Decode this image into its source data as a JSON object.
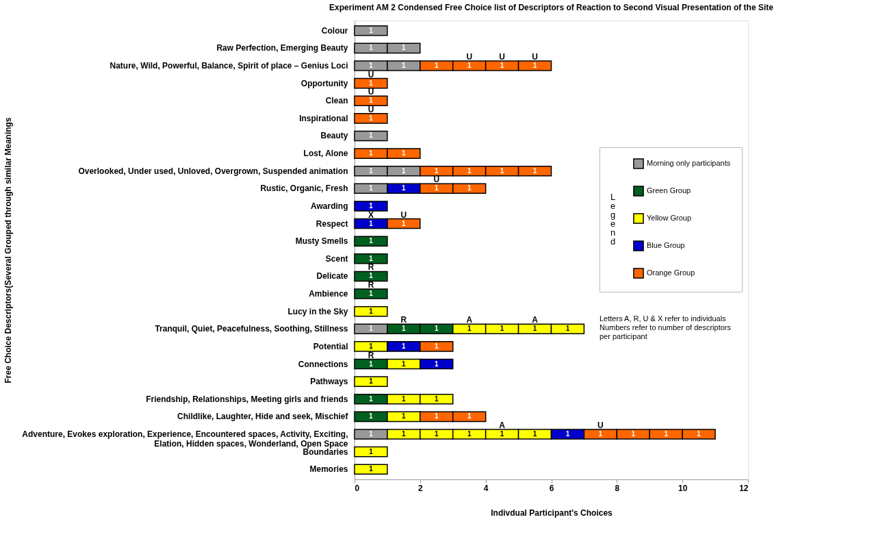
{
  "chart_data": {
    "type": "bar",
    "orientation": "horizontal",
    "stacked": true,
    "title": "Experiment AM 2    Condensed Free Choice list of Descriptors of Reaction to Second Visual Presentation of the Site",
    "xlabel": "Indivdual Participant's Choices",
    "ylabel": "Free Choice Descriptors(Several Grouped through similar Meanings",
    "legend_title": "Legend",
    "categories": [
      "Colour",
      "Raw Perfection, Emerging Beauty",
      "Nature, Wild, Powerful, Balance,  Spirit of place – Genius Loci",
      "Opportunity",
      "Clean",
      "Inspirational",
      "Beauty",
      "Lost, Alone",
      "Overlooked, Under used, Unloved, Overgrown, Suspended animation",
      "Rustic, Organic, Fresh",
      "Awarding",
      "Respect",
      "Musty Smells",
      "Scent",
      "Delicate",
      "Ambience",
      "Lucy in the Sky",
      "Tranquil, Quiet, Peacefulness, Soothing, Stillness",
      "Potential",
      "Connections",
      "Pathways",
      "Friendship, Relationships, Meeting girls and friends",
      "Childlike, Laughter, Hide and seek, Mischief",
      "Adventure, Evokes exploration, Experience, Encountered spaces, Activity, Exciting,\nElation, Hidden spaces, Wonderland, Open Space",
      "Boundaries",
      "Memories"
    ],
    "series": [
      {
        "name": "Morning only participants",
        "color": "#999999",
        "values": [
          1,
          1,
          1,
          null,
          null,
          null,
          1,
          null,
          1,
          1,
          null,
          null,
          null,
          null,
          null,
          null,
          null,
          1,
          null,
          null,
          null,
          null,
          null,
          1,
          null,
          null
        ]
      },
      {
        "color": "#999999",
        "values": [
          null,
          1,
          1,
          null,
          null,
          null,
          null,
          null,
          1,
          null,
          null,
          null,
          null,
          null,
          null,
          null,
          null,
          null,
          null,
          null,
          null,
          null,
          null,
          null,
          null,
          null
        ]
      },
      {
        "name": "Green Group",
        "color": "#006020",
        "values": [
          null,
          null,
          null,
          null,
          null,
          null,
          null,
          null,
          null,
          null,
          null,
          null,
          1,
          1,
          1,
          1,
          null,
          1,
          null,
          1,
          null,
          1,
          1,
          null,
          null,
          null
        ]
      },
      {
        "color": "#006020",
        "values": [
          null,
          null,
          null,
          null,
          null,
          null,
          null,
          null,
          null,
          null,
          null,
          null,
          null,
          null,
          null,
          null,
          null,
          1,
          null,
          null,
          null,
          null,
          null,
          null,
          null,
          null
        ]
      },
      {
        "name": "Yellow Group",
        "color": "#ffff00",
        "values": [
          null,
          null,
          null,
          null,
          null,
          null,
          null,
          null,
          null,
          null,
          null,
          null,
          null,
          null,
          null,
          null,
          1,
          1,
          1,
          1,
          1,
          1,
          1,
          1,
          1,
          1
        ]
      },
      {
        "color": "#ffff00",
        "values": [
          null,
          null,
          null,
          null,
          null,
          null,
          null,
          null,
          null,
          null,
          null,
          null,
          null,
          null,
          null,
          null,
          null,
          1,
          null,
          null,
          null,
          1,
          null,
          1,
          null,
          null
        ]
      },
      {
        "color": "#ffff00",
        "values": [
          null,
          null,
          null,
          null,
          null,
          null,
          null,
          null,
          null,
          null,
          null,
          null,
          null,
          null,
          null,
          null,
          null,
          1,
          null,
          null,
          null,
          null,
          null,
          1,
          null,
          null
        ]
      },
      {
        "color": "#ffff00",
        "values": [
          null,
          null,
          null,
          null,
          null,
          null,
          null,
          null,
          null,
          null,
          null,
          null,
          null,
          null,
          null,
          null,
          null,
          1,
          null,
          null,
          null,
          null,
          null,
          1,
          null,
          null
        ]
      },
      {
        "color": "#ffff00",
        "values": [
          null,
          null,
          null,
          null,
          null,
          null,
          null,
          null,
          null,
          null,
          null,
          null,
          null,
          null,
          null,
          null,
          null,
          null,
          null,
          null,
          null,
          null,
          null,
          1,
          null,
          null
        ]
      },
      {
        "name": "Blue Group",
        "color": "#0000cc",
        "values": [
          null,
          null,
          null,
          null,
          null,
          null,
          null,
          null,
          null,
          1,
          1,
          1,
          null,
          null,
          null,
          null,
          null,
          null,
          1,
          1,
          null,
          null,
          null,
          1,
          null,
          null
        ]
      },
      {
        "name": "Orange Group",
        "color": "#ff6600",
        "values": [
          null,
          null,
          1,
          1,
          1,
          1,
          null,
          1,
          1,
          1,
          null,
          1,
          null,
          null,
          null,
          null,
          null,
          null,
          1,
          null,
          null,
          null,
          1,
          1,
          null,
          null
        ]
      },
      {
        "color": "#ff6600",
        "values": [
          null,
          null,
          1,
          null,
          null,
          null,
          null,
          1,
          1,
          1,
          null,
          null,
          null,
          null,
          null,
          null,
          null,
          null,
          null,
          null,
          null,
          null,
          1,
          1,
          null,
          null
        ]
      },
      {
        "color": "#ff6600",
        "values": [
          null,
          null,
          1,
          null,
          null,
          null,
          null,
          null,
          1,
          null,
          null,
          null,
          null,
          null,
          null,
          null,
          null,
          null,
          null,
          null,
          null,
          null,
          null,
          1,
          null,
          null
        ]
      },
      {
        "color": "#ff6600",
        "values": [
          null,
          null,
          1,
          null,
          null,
          null,
          null,
          null,
          1,
          null,
          null,
          null,
          null,
          null,
          null,
          null,
          null,
          null,
          null,
          null,
          null,
          null,
          null,
          1,
          null,
          null
        ]
      }
    ],
    "data_labels": true,
    "xlim": [
      0,
      12
    ],
    "xticks": [
      0,
      2,
      4,
      6,
      8,
      10,
      12
    ],
    "grid": false,
    "legend": "right",
    "annotations": [
      {
        "text": "U",
        "x": 3.5,
        "y": "Nature, Wild, Powerful, Balance,  Spirit of place – Genius Loci"
      },
      {
        "text": "U",
        "x": 4.5,
        "y": "Nature, Wild, Powerful, Balance,  Spirit of place – Genius Loci"
      },
      {
        "text": "U",
        "x": 5.5,
        "y": "Nature, Wild, Powerful, Balance,  Spirit of place – Genius Loci"
      },
      {
        "text": "U",
        "x": 0.5,
        "y": "Opportunity"
      },
      {
        "text": "U",
        "x": 0.5,
        "y": "Clean"
      },
      {
        "text": "U",
        "x": 0.5,
        "y": "Inspirational"
      },
      {
        "text": "U",
        "x": 2.5,
        "y": "Rustic, Organic, Fresh"
      },
      {
        "text": "X",
        "x": 0.5,
        "y": "Respect"
      },
      {
        "text": "U",
        "x": 1.5,
        "y": "Respect"
      },
      {
        "text": "R",
        "x": 0.5,
        "y": "Delicate"
      },
      {
        "text": "R",
        "x": 0.5,
        "y": "Ambience"
      },
      {
        "text": "R",
        "x": 1.5,
        "y": "Tranquil, Quiet, Peacefulness, Soothing, Stillness"
      },
      {
        "text": "A",
        "x": 3.5,
        "y": "Tranquil, Quiet, Peacefulness, Soothing, Stillness"
      },
      {
        "text": "A",
        "x": 5.5,
        "y": "Tranquil, Quiet, Peacefulness, Soothing, Stillness"
      },
      {
        "text": "R",
        "x": 0.5,
        "y": "Connections"
      },
      {
        "text": "A",
        "x": 4.5,
        "y": "Adventure, Evokes exploration, Experience, Encountered spaces, Activity, Exciting,\nElation, Hidden spaces, Wonderland, Open Space"
      },
      {
        "text": "U",
        "x": 7.5,
        "y": "Adventure, Evokes exploration, Experience, Encountered spaces, Activity, Exciting,\nElation, Hidden spaces, Wonderland, Open Space"
      },
      "Letters A, R, U & X refer to individuals\nNumbers refer to number of descriptors\nper participant"
    ]
  }
}
